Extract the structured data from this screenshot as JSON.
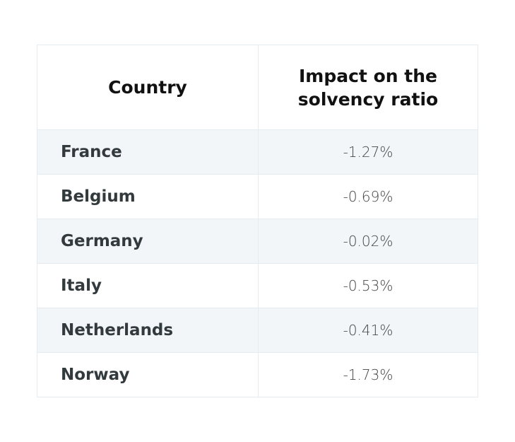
{
  "table": {
    "header": [
      "Country",
      "Impact on the solvency ratio"
    ],
    "rows": [
      [
        "France",
        "-1.27%"
      ],
      [
        "Belgium",
        "-0.69%"
      ],
      [
        "Germany",
        "-0.02%"
      ],
      [
        "Italy",
        "-0.53%"
      ],
      [
        "Netherlands",
        "-0.41%"
      ],
      [
        "Norway",
        "-1.73%"
      ]
    ]
  }
}
